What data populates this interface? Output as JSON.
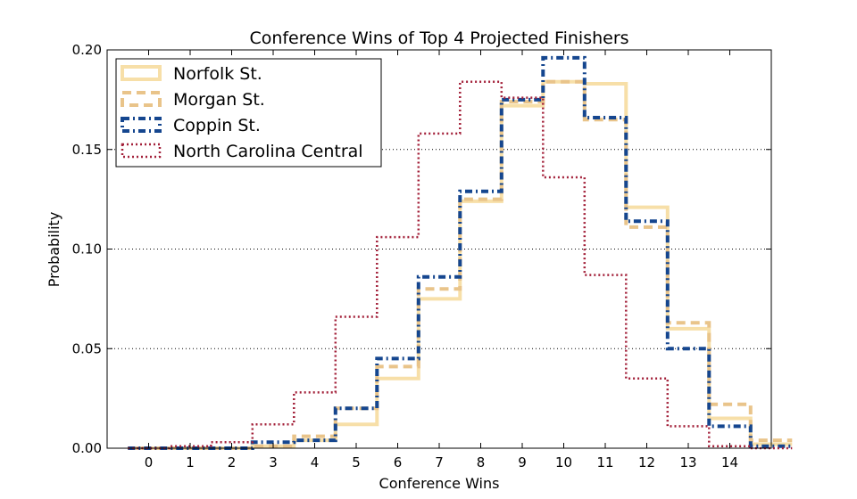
{
  "chart_data": {
    "type": "line",
    "title": "Conference Wins of Top 4 Projected Finishers",
    "xlabel": "Conference Wins",
    "ylabel": "Probability",
    "x_ticks": [
      0,
      1,
      2,
      3,
      4,
      5,
      6,
      7,
      8,
      9,
      10,
      11,
      12,
      13,
      14
    ],
    "xlim": [
      -1,
      15
    ],
    "ylim": [
      0,
      0.2
    ],
    "y_ticks": [
      "0.00",
      "0.05",
      "0.10",
      "0.15",
      "0.20"
    ],
    "grid": "horizontal-dotted",
    "legend_position": "top-left",
    "series": [
      {
        "name": "Norfolk St.",
        "color": "#f7dfa8",
        "style": "solid",
        "values": [
          0.0,
          0.0,
          0.0,
          0.001,
          0.004,
          0.012,
          0.035,
          0.075,
          0.124,
          0.172,
          0.184,
          0.183,
          0.121,
          0.06,
          0.015,
          0.002
        ]
      },
      {
        "name": "Morgan St.",
        "color": "#e9c48a",
        "style": "dashed",
        "values": [
          0.0,
          0.0,
          0.0,
          0.001,
          0.006,
          0.02,
          0.041,
          0.08,
          0.125,
          0.174,
          0.184,
          0.165,
          0.111,
          0.063,
          0.022,
          0.004
        ]
      },
      {
        "name": "Coppin St.",
        "color": "#15468f",
        "style": "dashdot",
        "values": [
          0.0,
          0.0,
          0.0,
          0.003,
          0.004,
          0.02,
          0.045,
          0.086,
          0.129,
          0.175,
          0.196,
          0.166,
          0.114,
          0.05,
          0.011,
          0.001
        ]
      },
      {
        "name": "North Carolina Central",
        "color": "#a3213a",
        "style": "dotted",
        "values": [
          0.0,
          0.001,
          0.003,
          0.012,
          0.028,
          0.066,
          0.106,
          0.158,
          0.184,
          0.176,
          0.136,
          0.087,
          0.035,
          0.011,
          0.001,
          0.0
        ]
      }
    ]
  }
}
